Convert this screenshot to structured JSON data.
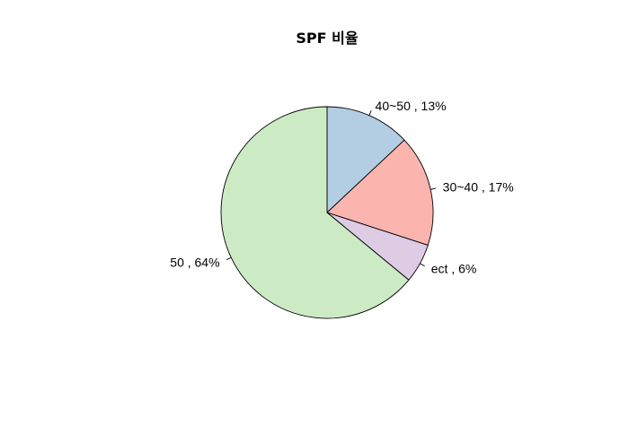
{
  "chart_data": {
    "type": "pie",
    "title": "SPF 비율",
    "start_angle_deg": 90,
    "direction": "clockwise",
    "slices": [
      {
        "category": "40~50",
        "value": 13,
        "label": "40~50 , 13%",
        "color": "#B3CDE3"
      },
      {
        "category": "30~40",
        "value": 17,
        "label": "30~40 , 17%",
        "color": "#FBB4AE"
      },
      {
        "category": "ect",
        "value": 6,
        "label": "ect , 6%",
        "color": "#DECBE4"
      },
      {
        "category": "50",
        "value": 64,
        "label": "50 , 64%",
        "color": "#CCEBC5"
      }
    ]
  }
}
